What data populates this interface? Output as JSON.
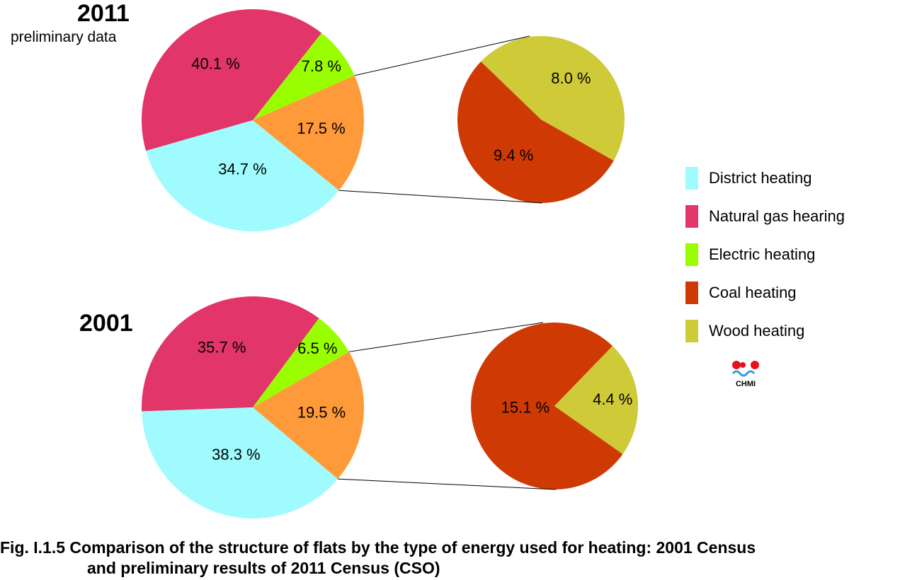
{
  "colors": {
    "district": "#9ffbfd",
    "gas": "#e23569",
    "electric": "#99ff00",
    "other": "#ff9a3a",
    "coal": "#cf3a04",
    "wood": "#cfca37"
  },
  "legend": [
    {
      "label": "District heating",
      "color": "#9ffbfd"
    },
    {
      "label": "Natural gas hearing",
      "color": "#e23569"
    },
    {
      "label": "Electric heating",
      "color": "#99ff00"
    },
    {
      "label": "Coal heating",
      "color": "#cf3a04"
    },
    {
      "label": "Wood heating",
      "color": "#cfca37"
    }
  ],
  "chart_data": [
    {
      "type": "pie",
      "title": "2011",
      "subtitle": "preliminary data",
      "slices": [
        {
          "key": "district",
          "value": 34.7,
          "label": "34.7 %"
        },
        {
          "key": "gas",
          "value": 40.1,
          "label": "40.1 %"
        },
        {
          "key": "electric",
          "value": 7.8,
          "label": "7.8 %"
        },
        {
          "key": "other",
          "value": 17.5,
          "label": "17.5 %"
        }
      ],
      "breakdown": {
        "of": "17.5 %",
        "slices": [
          {
            "key": "wood",
            "value": 8.0,
            "label": "8.0 %"
          },
          {
            "key": "coal",
            "value": 9.4,
            "label": "9.4 %"
          }
        ]
      }
    },
    {
      "type": "pie",
      "title": "2001",
      "subtitle": "",
      "slices": [
        {
          "key": "district",
          "value": 38.3,
          "label": "38.3 %"
        },
        {
          "key": "gas",
          "value": 35.7,
          "label": "35.7 %"
        },
        {
          "key": "electric",
          "value": 6.5,
          "label": "6.5 %"
        },
        {
          "key": "other",
          "value": 19.5,
          "label": "19.5 %"
        }
      ],
      "breakdown": {
        "of": "19.5 %",
        "slices": [
          {
            "key": "wood",
            "value": 4.4,
            "label": "4.4 %"
          },
          {
            "key": "coal",
            "value": 15.1,
            "label": "15.1 %"
          }
        ]
      }
    }
  ],
  "logo": {
    "text": "CHMI"
  },
  "caption": {
    "line1": "Fig. I.1.5  Comparison of the structure of flats by the type of energy used for heating: 2001 Census",
    "line2": "and preliminary results of 2011 Census (CSO)"
  }
}
